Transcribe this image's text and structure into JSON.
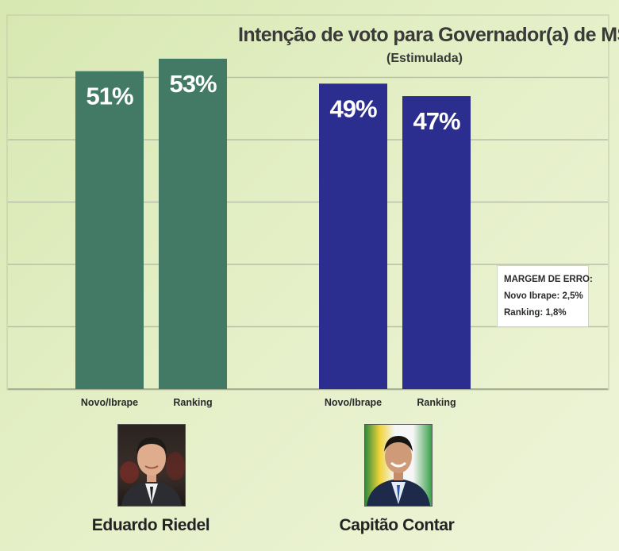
{
  "chart_data": {
    "type": "bar",
    "title": "Intenção de voto para Governador(a) de MS",
    "subtitle": "(Estimulada)",
    "ylim": [
      0,
      60
    ],
    "grid": true,
    "groups": [
      {
        "candidate": "Eduardo Riedel",
        "color": "#427a66",
        "bars": [
          {
            "category": "Novo/Ibrape",
            "value": 51,
            "label": "51%"
          },
          {
            "category": "Ranking",
            "value": 53,
            "label": "53%"
          }
        ]
      },
      {
        "candidate": "Capitão Contar",
        "color": "#2b2e8f",
        "bars": [
          {
            "category": "Novo/Ibrape",
            "value": 49,
            "label": "49%"
          },
          {
            "category": "Ranking",
            "value": 47,
            "label": "47%"
          }
        ]
      }
    ]
  },
  "margin_note": {
    "heading": "MARGEM DE ERRO:",
    "line1": "Novo Ibrape: 2,5%",
    "line2": "Ranking: 1,8%"
  },
  "icons": {
    "photo1": "portrait-eduardo-riedel-icon",
    "photo2": "portrait-capitao-contar-icon"
  }
}
